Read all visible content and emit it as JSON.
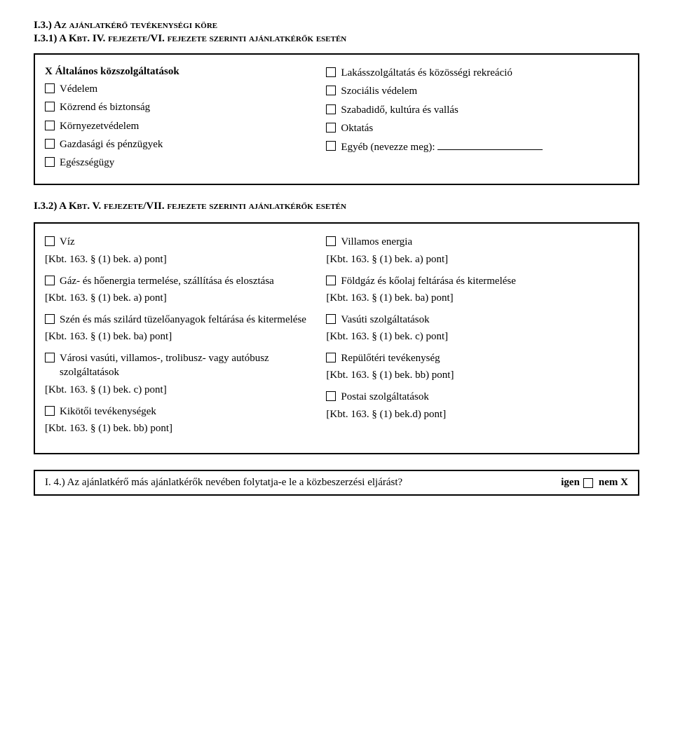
{
  "section_i3": {
    "heading": "I.3.) Az ajánlatkérő tevékenységi köre",
    "sub_i31": "I.3.1) A Kbt. IV. fejezete/VI. fejezete szerinti ajánlatkérők esetén",
    "box1": {
      "x_line": "X Általános közszolgáltatások",
      "left": [
        "Védelem",
        "Közrend és biztonság",
        "Környezetvédelem",
        "Gazdasági és pénzügyek",
        "Egészségügy"
      ],
      "right": [
        "Lakásszolgáltatás és közösségi rekreáció",
        "Szociális védelem",
        "Szabadidő, kultúra és vallás",
        "Oktatás"
      ],
      "right_other_prefix": "Egyéb (nevezze meg):"
    },
    "sub_i32": "I.3.2) A Kbt. V. fejezete/VII. fejezete szerinti ajánlatkérők esetén",
    "box2": {
      "left": [
        {
          "label": "Víz",
          "ref": "[Kbt. 163. § (1) bek. a) pont]"
        },
        {
          "label": "Gáz- és hőenergia termelése, szállítása és elosztása",
          "ref": "[Kbt. 163. § (1) bek. a) pont]"
        },
        {
          "label": "Szén és más szilárd tüzelőanyagok feltárása és kitermelése",
          "ref": "[Kbt. 163. § (1) bek. ba) pont]"
        },
        {
          "label": "Városi vasúti, villamos-, trolibusz- vagy autóbusz szolgáltatások",
          "ref": "[Kbt. 163. § (1) bek. c) pont]"
        },
        {
          "label": "Kikötői tevékenységek",
          "ref": "[Kbt. 163. § (1) bek. bb) pont]"
        }
      ],
      "right": [
        {
          "label": "Villamos energia",
          "ref": "[Kbt. 163. § (1) bek. a) pont]"
        },
        {
          "label": "Földgáz és kőolaj feltárása és kitermelése",
          "ref": "[Kbt. 163. § (1) bek. ba) pont]"
        },
        {
          "label": "Vasúti szolgáltatások",
          "ref": "[Kbt. 163. § (1) bek. c) pont]"
        },
        {
          "label": "Repülőtéri tevékenység",
          "ref": "[Kbt. 163. § (1) bek. bb) pont]"
        },
        {
          "label": "Postai szolgáltatások",
          "ref": "[Kbt. 163. § (1) bek.d) pont]"
        }
      ]
    }
  },
  "section_i4": {
    "question": "I. 4.) Az ajánlatkérő más ajánlatkérők nevében folytatja-e le a közbeszerzési eljárást?",
    "yes": "igen",
    "no": "nem X"
  }
}
